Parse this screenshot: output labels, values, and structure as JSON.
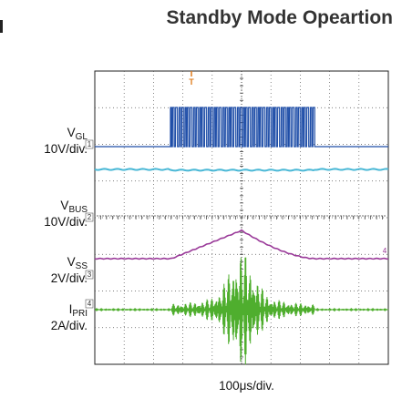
{
  "chart_data": {
    "type": "line",
    "title": "Standby Mode Opeartion",
    "xlabel": "100μs/div.",
    "grid": true,
    "divisions": {
      "x": 10,
      "y": 8
    },
    "trigger_marker": "T",
    "channel_markers": [
      "1",
      "2",
      "3",
      "4"
    ],
    "series": [
      {
        "name": "VGL",
        "scale": "10V/div.",
        "color": "#1f4ea8"
      },
      {
        "name": "VBUS",
        "scale": "10V/div.",
        "color": "#4ab8d6"
      },
      {
        "name": "VSS",
        "scale": "2V/div.",
        "color": "#9a3a99"
      },
      {
        "name": "IPRI",
        "scale": "2A/div.",
        "color": "#4fae2e"
      }
    ]
  },
  "labels": {
    "vgl_main": "V",
    "vgl_sub": "GL",
    "vgl_scale": "10V/div.",
    "vbus_main": "V",
    "vbus_sub": "BUS",
    "vbus_scale": "10V/div.",
    "vss_main": "V",
    "vss_sub": "SS",
    "vss_scale": "2V/div.",
    "ipri_main": "I",
    "ipri_sub": "PRI",
    "ipri_scale": "2A/div."
  },
  "colors": {
    "plot_bg": "#ffffff",
    "grid": "#555555",
    "marker_orange": "#e07b1a"
  }
}
